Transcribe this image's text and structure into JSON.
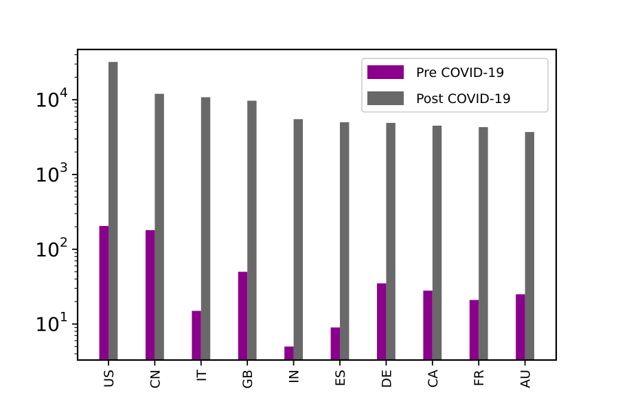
{
  "chart_data": {
    "type": "bar",
    "title": "",
    "xlabel": "",
    "ylabel": "",
    "yscale": "log",
    "ylim": [
      3.3,
      47000
    ],
    "categories": [
      "US",
      "CN",
      "IT",
      "GB",
      "IN",
      "ES",
      "DE",
      "CA",
      "FR",
      "AU"
    ],
    "series": [
      {
        "name": "Pre COVID-19",
        "color": "#8b008b",
        "values": [
          205,
          180,
          15,
          50,
          5,
          9,
          35,
          28,
          21,
          25
        ]
      },
      {
        "name": "Post COVID-19",
        "color": "#696969",
        "values": [
          32000,
          12000,
          10800,
          9700,
          5500,
          5000,
          4900,
          4500,
          4300,
          3700
        ]
      }
    ],
    "yticks": [
      {
        "base": "10",
        "exp": "1",
        "value": 10
      },
      {
        "base": "10",
        "exp": "2",
        "value": 100
      },
      {
        "base": "10",
        "exp": "3",
        "value": 1000
      },
      {
        "base": "10",
        "exp": "4",
        "value": 10000
      }
    ],
    "legend": {
      "placement": "top-right"
    },
    "grid": false,
    "xtick_rotation": "vertical"
  }
}
